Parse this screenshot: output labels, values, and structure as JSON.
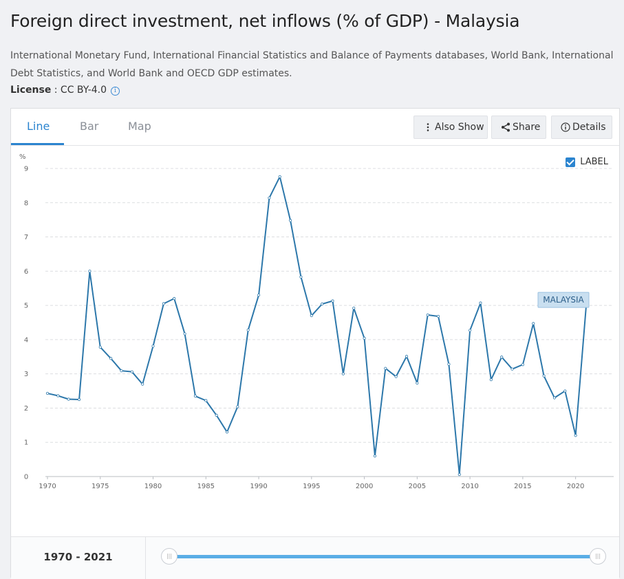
{
  "page": {
    "title": "Foreign direct investment, net inflows (% of GDP) - Malaysia",
    "source": "International Monetary Fund, International Financial Statistics and Balance of Payments databases, World Bank, International Debt Statistics, and World Bank and OECD GDP estimates.",
    "license_label": "License",
    "license_value": " : CC BY-4.0"
  },
  "tabs": [
    {
      "label": "Line",
      "active": true
    },
    {
      "label": "Bar",
      "active": false
    },
    {
      "label": "Map",
      "active": false
    }
  ],
  "toolbar": {
    "also_show": "Also Show",
    "share": "Share",
    "details": "Details"
  },
  "label_toggle": {
    "text": "LABEL",
    "checked": true
  },
  "range": {
    "text": "1970 - 2021"
  },
  "chart_data": {
    "type": "line",
    "ylabel": "%",
    "ylim": [
      0,
      9
    ],
    "yticks": [
      0,
      1,
      2,
      3,
      4,
      5,
      6,
      7,
      8,
      9
    ],
    "xlim": [
      1970,
      2021
    ],
    "xticks": [
      1970,
      1975,
      1980,
      1985,
      1990,
      1995,
      2000,
      2005,
      2010,
      2015,
      2020
    ],
    "grid": true,
    "series": [
      {
        "name": "MALAYSIA",
        "color": "#2c77aa",
        "x": [
          1970,
          1971,
          1972,
          1973,
          1974,
          1975,
          1976,
          1977,
          1978,
          1979,
          1980,
          1981,
          1982,
          1983,
          1984,
          1985,
          1986,
          1987,
          1988,
          1989,
          1990,
          1991,
          1992,
          1993,
          1994,
          1995,
          1996,
          1997,
          1998,
          1999,
          2000,
          2001,
          2002,
          2003,
          2004,
          2005,
          2006,
          2007,
          2008,
          2009,
          2010,
          2011,
          2012,
          2013,
          2014,
          2015,
          2016,
          2017,
          2018,
          2019,
          2020,
          2021
        ],
        "values": [
          2.43,
          2.36,
          2.26,
          2.25,
          6.0,
          3.78,
          3.45,
          3.09,
          3.06,
          2.7,
          3.81,
          5.05,
          5.2,
          4.17,
          2.35,
          2.22,
          1.79,
          1.3,
          2.04,
          4.28,
          5.3,
          8.14,
          8.76,
          7.48,
          5.83,
          4.7,
          5.04,
          5.13,
          3.0,
          4.92,
          4.04,
          0.6,
          3.16,
          2.92,
          3.51,
          2.73,
          4.72,
          4.68,
          3.28,
          0.06,
          4.27,
          5.07,
          2.83,
          3.49,
          3.14,
          3.27,
          4.47,
          2.94,
          2.3,
          2.5,
          1.2,
          4.98
        ]
      }
    ]
  }
}
